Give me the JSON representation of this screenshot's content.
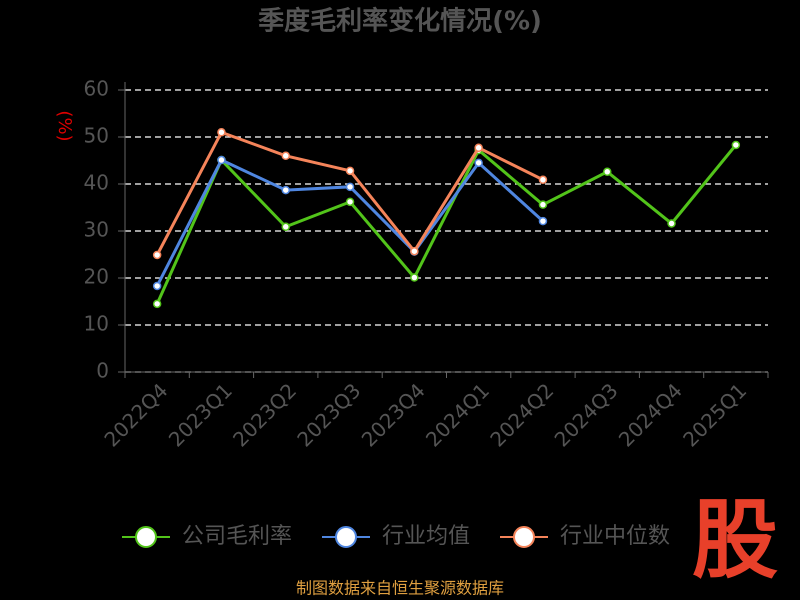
{
  "chart_data": {
    "type": "line",
    "title": "季度毛利率变化情况(%)",
    "y_label": "(%)",
    "categories": [
      "2022Q4",
      "2023Q1",
      "2023Q2",
      "2023Q3",
      "2023Q4",
      "2024Q1",
      "2024Q2",
      "2024Q3",
      "2024Q4",
      "2025Q1"
    ],
    "series": [
      {
        "name": "公司毛利率",
        "color": "#52c41a",
        "values": [
          14.5,
          45.1,
          30.9,
          36.2,
          20.1,
          47.2,
          35.6,
          42.6,
          31.6,
          48.3
        ]
      },
      {
        "name": "行业均值",
        "color": "#4f86e0",
        "values": [
          18.3,
          45.1,
          38.7,
          39.4,
          25.6,
          44.5,
          32.1,
          null,
          null,
          null
        ]
      },
      {
        "name": "行业中位数",
        "color": "#f5845a",
        "values": [
          24.9,
          51.0,
          46.0,
          42.8,
          25.7,
          47.7,
          40.9,
          null,
          null,
          null
        ]
      }
    ],
    "ylim": [
      0,
      60
    ],
    "yticks": [
      0,
      10,
      20,
      30,
      40,
      50,
      60
    ],
    "grid": true,
    "source": "制图数据来自恒生聚源数据库"
  },
  "watermark": "股"
}
